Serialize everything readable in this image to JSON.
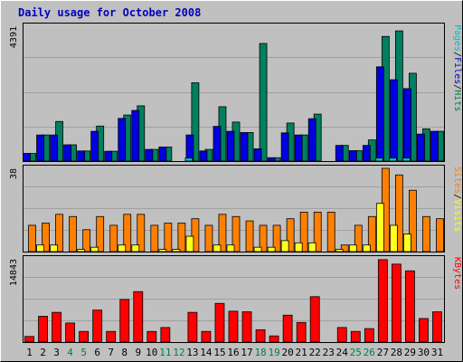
{
  "chart_data": {
    "type": "bar",
    "title": "Daily usage for October 2008",
    "categories": [
      "1",
      "2",
      "3",
      "4",
      "5",
      "6",
      "7",
      "8",
      "9",
      "10",
      "11",
      "12",
      "13",
      "14",
      "15",
      "16",
      "17",
      "18",
      "19",
      "20",
      "21",
      "22",
      "23",
      "24",
      "25",
      "26",
      "27",
      "28",
      "29",
      "30",
      "31"
    ],
    "weekend_days": [
      "4",
      "5",
      "11",
      "12",
      "18",
      "19",
      "25",
      "26"
    ],
    "panels": [
      {
        "id": "hits",
        "max_label": "4391",
        "ymax": 4391,
        "legend": [
          "Pages",
          "/",
          "Files",
          "/",
          "Hits"
        ],
        "legend_colors": [
          "#00c0c0",
          "#000000",
          "#0000c0",
          "#000000",
          "#008040"
        ],
        "series": [
          {
            "name": "Hits",
            "color": "#008060",
            "values": [
              250,
              850,
              1290,
              530,
              330,
              1140,
              320,
              1500,
              1800,
              380,
              460,
              0,
              2550,
              380,
              1770,
              1270,
              930,
              3830,
              110,
              1240,
              850,
              1530,
              0,
              510,
              340,
              690,
              4060,
              4240,
              2860,
              1050,
              970
            ]
          },
          {
            "name": "Files",
            "color": "#0000e0",
            "values": [
              250,
              850,
              850,
              530,
              330,
              970,
              320,
              1390,
              1650,
              380,
              460,
              0,
              850,
              330,
              1130,
              970,
              930,
              400,
              110,
              920,
              850,
              1380,
              0,
              510,
              340,
              510,
              3070,
              2650,
              2360,
              880,
              970
            ]
          },
          {
            "name": "Pages",
            "color": "#00c0c0",
            "values": [
              0,
              0,
              0,
              0,
              0,
              0,
              0,
              0,
              0,
              0,
              0,
              0,
              100,
              0,
              0,
              0,
              0,
              0,
              0,
              0,
              0,
              0,
              0,
              0,
              0,
              0,
              100,
              100,
              100,
              0,
              0
            ]
          }
        ]
      },
      {
        "id": "visits",
        "max_label": "38",
        "ymax": 38,
        "legend": [
          "Sites",
          "/",
          "Visits"
        ],
        "legend_colors": [
          "#ff8000",
          "#000000",
          "#ffff00"
        ],
        "series": [
          {
            "name": "Visits",
            "color": "#ff8000",
            "values": [
              12,
              13,
              17,
              16,
              10,
              16,
              12,
              17,
              17,
              12,
              13,
              13,
              15,
              12,
              17,
              16,
              14,
              12,
              12,
              15,
              18,
              18,
              18,
              3,
              12,
              16,
              38,
              35,
              28,
              16,
              15
            ]
          },
          {
            "name": "Sites",
            "color": "#ffff20",
            "values": [
              0,
              3,
              3,
              0,
              1,
              2,
              0,
              3,
              3,
              0,
              1,
              1,
              7,
              0,
              3,
              3,
              0,
              2,
              2,
              5,
              4,
              4,
              0,
              1,
              3,
              3,
              22,
              12,
              8,
              0,
              0
            ]
          }
        ]
      },
      {
        "id": "kbytes",
        "max_label": "14843",
        "ymax": 14843,
        "legend": [
          "KBytes"
        ],
        "legend_colors": [
          "#ff0000"
        ],
        "series": [
          {
            "name": "KBytes",
            "color": "#ff0000",
            "values": [
              1000,
              4600,
              5300,
              3400,
              1900,
              5700,
              1900,
              7600,
              9000,
              1900,
              2600,
              0,
              5300,
              1900,
              6900,
              5500,
              5400,
              2200,
              1100,
              4800,
              3500,
              8100,
              0,
              2600,
              1900,
              2400,
              14700,
              13900,
              12700,
              4200,
              5400
            ]
          }
        ]
      }
    ]
  }
}
